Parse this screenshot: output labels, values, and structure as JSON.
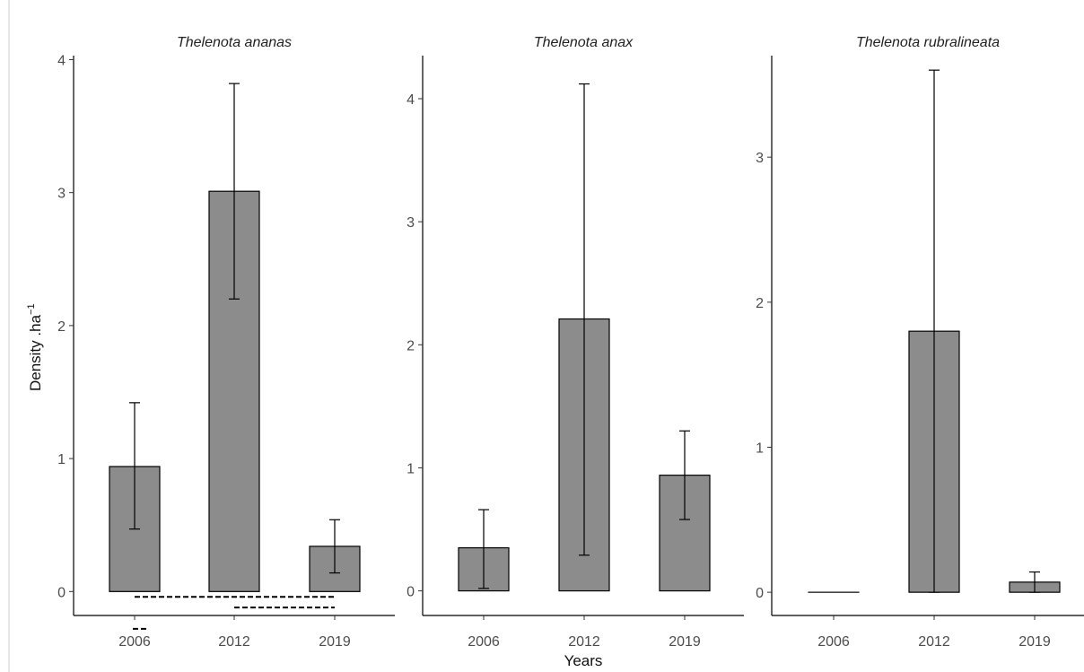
{
  "chart_data": {
    "type": "bar",
    "xlabel": "Years",
    "ylabel": "Density .ha",
    "ylabel_superscript": "−1",
    "categories": [
      "2006",
      "2012",
      "2019"
    ],
    "bar_color": "#8c8c8c",
    "grid": false,
    "panels": [
      {
        "title": "Thelenota ananas",
        "values": [
          0.94,
          3.01,
          0.34
        ],
        "error_low": [
          0.47,
          2.2,
          0.14
        ],
        "error_high": [
          1.42,
          3.82,
          0.54
        ],
        "ylim": [
          -0.18,
          4.03
        ],
        "yticks": [
          0,
          1,
          2,
          3,
          4
        ]
      },
      {
        "title": "Thelenota anax",
        "values": [
          0.35,
          2.21,
          0.94
        ],
        "error_low": [
          0.02,
          0.29,
          0.58
        ],
        "error_high": [
          0.66,
          4.12,
          1.3
        ],
        "ylim": [
          -0.2,
          4.35
        ],
        "yticks": [
          0,
          1,
          2,
          3,
          4
        ]
      },
      {
        "title": "Thelenota rubralineata",
        "values": [
          0,
          1.8,
          0.07
        ],
        "error_low": [
          0,
          0,
          0
        ],
        "error_high": [
          0,
          3.6,
          0.14
        ],
        "ylim": [
          -0.16,
          3.7
        ],
        "yticks": [
          0,
          1,
          2,
          3
        ]
      }
    ],
    "annotations": [
      {
        "type": "dashed-line",
        "panel": 0,
        "from": "2006",
        "to": "2019",
        "y": -0.04
      },
      {
        "type": "dashed-line",
        "panel": 0,
        "from": "2012",
        "to": "2019",
        "y": -0.12
      },
      {
        "type": "dashed-line",
        "panel": 0,
        "from": "2006",
        "to": "2006",
        "y": -0.28
      }
    ]
  }
}
